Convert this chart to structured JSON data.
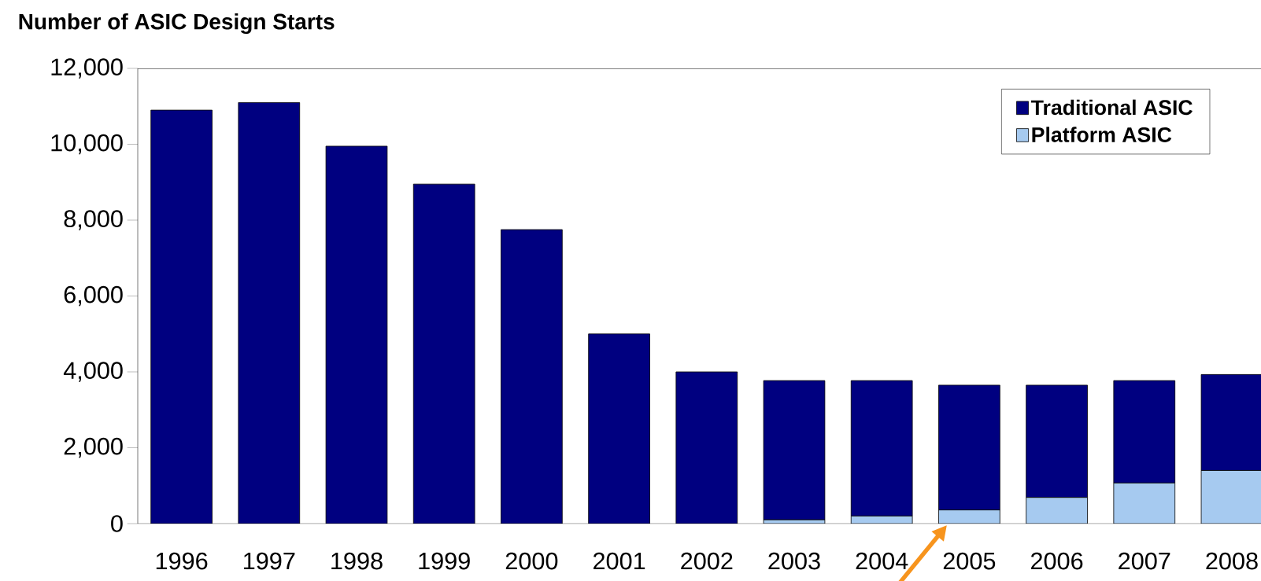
{
  "chart_data": {
    "type": "bar",
    "stacked": true,
    "ylabel": "Number of ASIC Design Starts",
    "categories": [
      "1996",
      "1997",
      "1998",
      "1999",
      "2000",
      "2001",
      "2002",
      "2003",
      "2004",
      "2005",
      "2006",
      "2007",
      "2008"
    ],
    "series": [
      {
        "name": "Platform ASIC",
        "color": "#a6caf0",
        "values": [
          null,
          null,
          null,
          null,
          null,
          null,
          null,
          100,
          200,
          360,
          690,
          1070,
          1400
        ]
      },
      {
        "name": "Traditional ASIC",
        "color": "#000080",
        "values": [
          10900,
          11100,
          9950,
          8950,
          7750,
          5000,
          4000,
          3670,
          3570,
          3290,
          2960,
          2700,
          2530
        ]
      }
    ],
    "ylim": [
      0,
      12000
    ],
    "yticks": [
      {
        "value": 0,
        "label": "0"
      },
      {
        "value": 2000,
        "label": "2,000"
      },
      {
        "value": 4000,
        "label": "4,000"
      },
      {
        "value": 6000,
        "label": "6,000"
      },
      {
        "value": 8000,
        "label": "8,000"
      },
      {
        "value": 10000,
        "label": "10,000"
      },
      {
        "value": 12000,
        "label": "12,000"
      }
    ],
    "grid": false,
    "legend": "top right"
  }
}
